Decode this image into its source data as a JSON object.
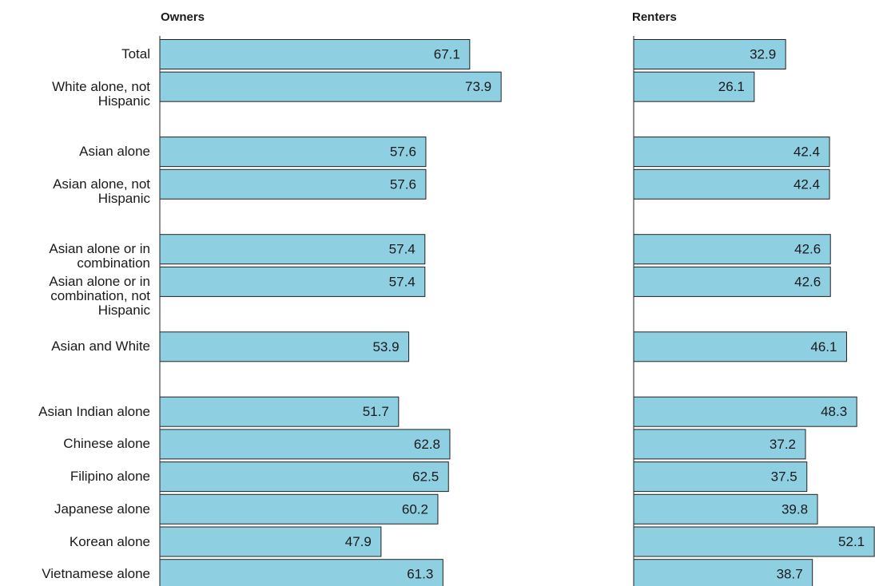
{
  "chart_data": {
    "type": "bar",
    "categories": [
      "Total",
      "White alone, not Hispanic",
      null,
      "Asian alone",
      "Asian alone, not Hispanic",
      null,
      "Asian alone or in combination",
      "Asian alone or in combination, not Hispanic",
      null,
      "Asian and White",
      null,
      "Asian Indian alone",
      "Chinese alone",
      "Filipino alone",
      "Japanese alone",
      "Korean alone",
      "Vietnamese alone"
    ],
    "series": [
      {
        "name": "Owners",
        "color": "#8ecfe2",
        "values": [
          67.1,
          73.9,
          null,
          57.6,
          57.6,
          null,
          57.4,
          57.4,
          null,
          53.9,
          null,
          51.7,
          62.8,
          62.5,
          60.2,
          47.9,
          61.3
        ]
      },
      {
        "name": "Renters",
        "color": "#8ecfe2",
        "values": [
          32.9,
          26.1,
          null,
          42.4,
          42.4,
          null,
          42.6,
          42.6,
          null,
          46.1,
          null,
          48.3,
          37.2,
          37.5,
          39.8,
          52.1,
          38.7
        ]
      }
    ]
  }
}
